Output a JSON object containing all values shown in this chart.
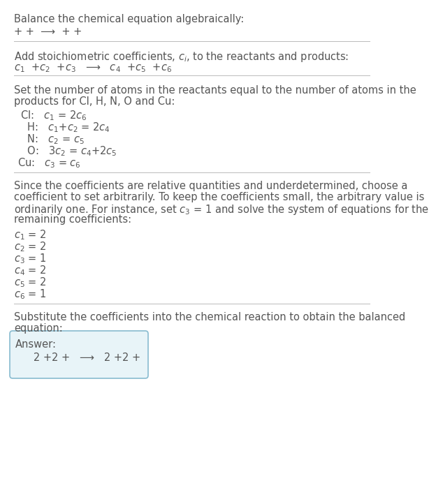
{
  "bg_color": "#ffffff",
  "text_color": "#555555",
  "title": "Balance the chemical equation algebraically:",
  "line1": "+ +  ⟶  + +",
  "section1_title": "Add stoichiometric coefficients, $c_i$, to the reactants and products:",
  "section1_eq": "$c_1$  +$c_2$  +$c_3$   ⟶   $c_4$  +$c_5$  +$c_6$",
  "section2_title_line1": "Set the number of atoms in the reactants equal to the number of atoms in the",
  "section2_title_line2": "products for Cl, H, N, O and Cu:",
  "section2_lines": [
    " Cl:   $c_1$ = 2$c_6$",
    "   H:   $c_1$+$c_2$ = 2$c_4$",
    "   N:   $c_2$ = $c_5$",
    "   O:   3$c_2$ = $c_4$+2$c_5$",
    "Cu:   $c_3$ = $c_6$"
  ],
  "section3_title_lines": [
    "Since the coefficients are relative quantities and underdetermined, choose a",
    "coefficient to set arbitrarily. To keep the coefficients small, the arbitrary value is",
    "ordinarily one. For instance, set $c_3$ = 1 and solve the system of equations for the",
    "remaining coefficients:"
  ],
  "section3_lines": [
    "$c_1$ = 2",
    "$c_2$ = 2",
    "$c_3$ = 1",
    "$c_4$ = 2",
    "$c_5$ = 2",
    "$c_6$ = 1"
  ],
  "section4_title_line1": "Substitute the coefficients into the chemical reaction to obtain the balanced",
  "section4_title_line2": "equation:",
  "answer_label": "Answer:",
  "answer_eq": "   2 +2 +   ⟶   2 +2 +",
  "answer_box_color": "#e8f4f8",
  "answer_box_border": "#88bbd0",
  "font_size": 10.5,
  "divider_color": "#bbbbbb"
}
